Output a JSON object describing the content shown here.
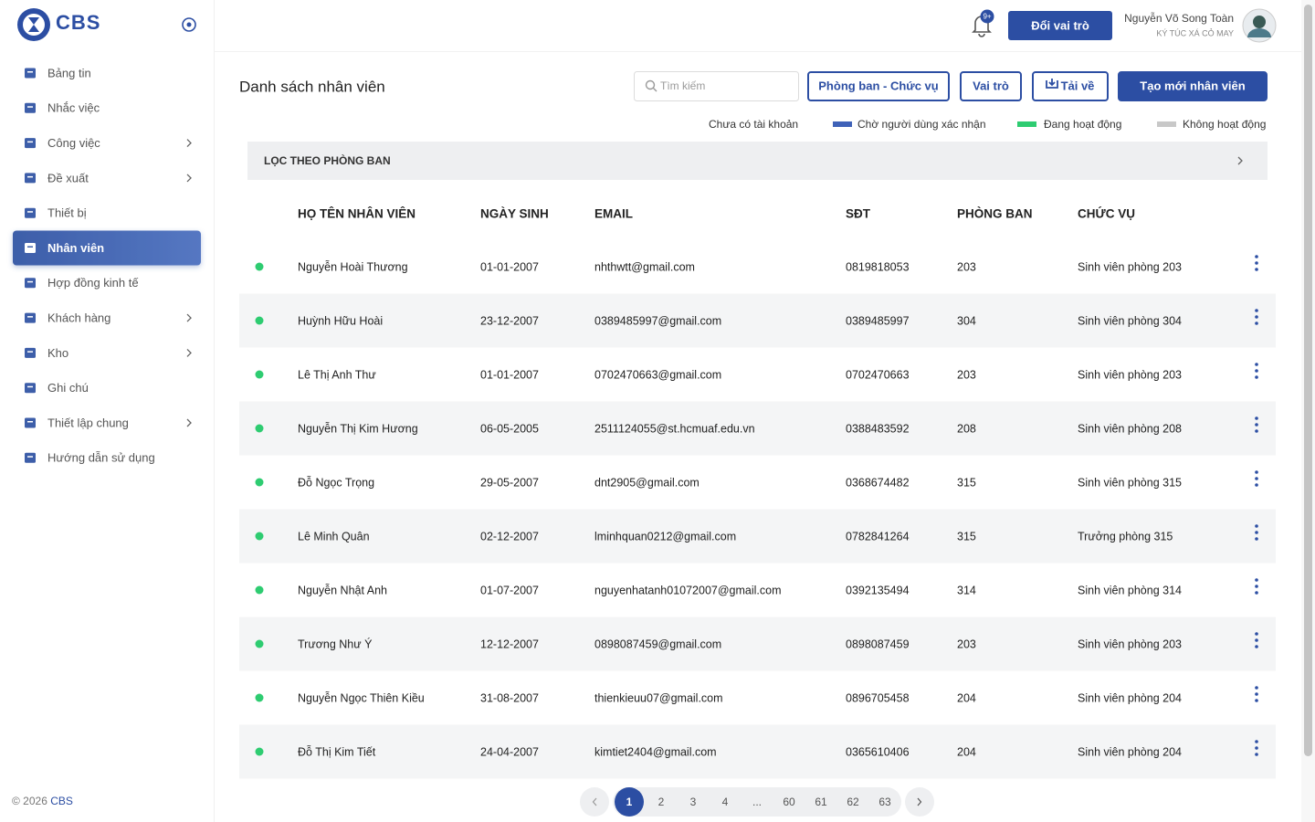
{
  "sidebar": {
    "brand": "CBS",
    "menu": [
      {
        "label": "Bảng tin"
      },
      {
        "label": "Nhắc việc"
      },
      {
        "label": "Công việc",
        "submenu": true
      },
      {
        "label": "Đề xuất",
        "submenu": true
      },
      {
        "label": "Thiết bị"
      },
      {
        "label": "Nhân viên",
        "active": true
      },
      {
        "label": "Hợp đồng kinh tế"
      },
      {
        "label": "Khách hàng",
        "submenu": true
      },
      {
        "label": "Kho",
        "submenu": true
      },
      {
        "label": "Ghi chú"
      },
      {
        "label": "Thiết lập chung",
        "submenu": true
      },
      {
        "label": "Hướng dẫn sử dụng"
      }
    ],
    "footer": {
      "copyright": "© 2026",
      "brand": "CBS"
    }
  },
  "topbar": {
    "notification_badge": "9+",
    "switch_role": "Đổi vai trò",
    "user_name": "Nguyễn Võ Song Toàn",
    "user_org": "KÝ TÚC XÁ CỎ MAY"
  },
  "page": {
    "title": "Danh sách nhân viên",
    "search_placeholder": "Tìm kiếm",
    "buttons": [
      {
        "label": "Phòng ban - Chức vụ"
      },
      {
        "label": "Vai trò"
      },
      {
        "label": "Tải về",
        "icon": "download"
      },
      {
        "label": "Tạo mới nhân viên",
        "primary": true
      }
    ],
    "legend": [
      {
        "label": "Chưa có tài khoản",
        "color": "#ffffff"
      },
      {
        "label": "Chờ người dùng xác nhận",
        "color": "#3f62b8"
      },
      {
        "label": "Đang hoạt động",
        "color": "#2ecc71"
      },
      {
        "label": "Không hoạt động",
        "color": "#c8c8c8"
      }
    ],
    "filter": {
      "label": "LỌC THEO PHÒNG BAN"
    }
  },
  "table": {
    "columns": [
      "HỌ TÊN NHÂN VIÊN",
      "NGÀY SINH",
      "EMAIL",
      "SĐT",
      "PHÒNG BAN",
      "CHỨC VỤ"
    ],
    "rows": [
      [
        "Nguyễn Hoài Thương",
        "01-01-2007",
        "nhthwtt@gmail.com",
        "0819818053",
        "203",
        "Sinh viên phòng 203"
      ],
      [
        "Huỳnh Hữu Hoài",
        "23-12-2007",
        "0389485997@gmail.com",
        "0389485997",
        "304",
        "Sinh viên phòng 304"
      ],
      [
        "Lê Thị Anh Thư",
        "01-01-2007",
        "0702470663@gmail.com",
        "0702470663",
        "203",
        "Sinh viên phòng 203"
      ],
      [
        "Nguyễn Thị Kim Hương",
        "06-05-2005",
        "2511124055@st.hcmuaf.edu.vn",
        "0388483592",
        "208",
        "Sinh viên phòng 208"
      ],
      [
        "Đỗ Ngọc Trọng",
        "29-05-2007",
        "dnt2905@gmail.com",
        "0368674482",
        "315",
        "Sinh viên phòng 315"
      ],
      [
        "Lê Minh Quân",
        "02-12-2007",
        "lminhquan0212@gmail.com",
        "0782841264",
        "315",
        "Trưởng phòng 315"
      ],
      [
        "Nguyễn Nhật Anh",
        "01-07-2007",
        "nguyenhatanh01072007@gmail.com",
        "0392135494",
        "314",
        "Sinh viên phòng 314"
      ],
      [
        "Trương Như Ý",
        "12-12-2007",
        "0898087459@gmail.com",
        "0898087459",
        "203",
        "Sinh viên phòng 203"
      ],
      [
        "Nguyễn Ngọc Thiên Kiều",
        "31-08-2007",
        "thienkieuu07@gmail.com",
        "0896705458",
        "204",
        "Sinh viên phòng 204"
      ],
      [
        "Đỗ Thị Kim Tiết",
        "24-04-2007",
        "kimtiet2404@gmail.com",
        "0365610406",
        "204",
        "Sinh viên phòng 204"
      ]
    ],
    "row_status_colors": [
      "#2ecc71",
      "#2ecc71",
      "#2ecc71",
      "#2ecc71",
      "#2ecc71",
      "#2ecc71",
      "#2ecc71",
      "#2ecc71",
      "#2ecc71",
      "#2ecc71"
    ]
  },
  "pagination": {
    "pages": [
      {
        "label": "1",
        "current": true
      },
      {
        "label": "2"
      },
      {
        "label": "3"
      },
      {
        "label": "4"
      },
      {
        "label": "..."
      },
      {
        "label": "60"
      },
      {
        "label": "61"
      },
      {
        "label": "62"
      },
      {
        "label": "63"
      }
    ]
  }
}
